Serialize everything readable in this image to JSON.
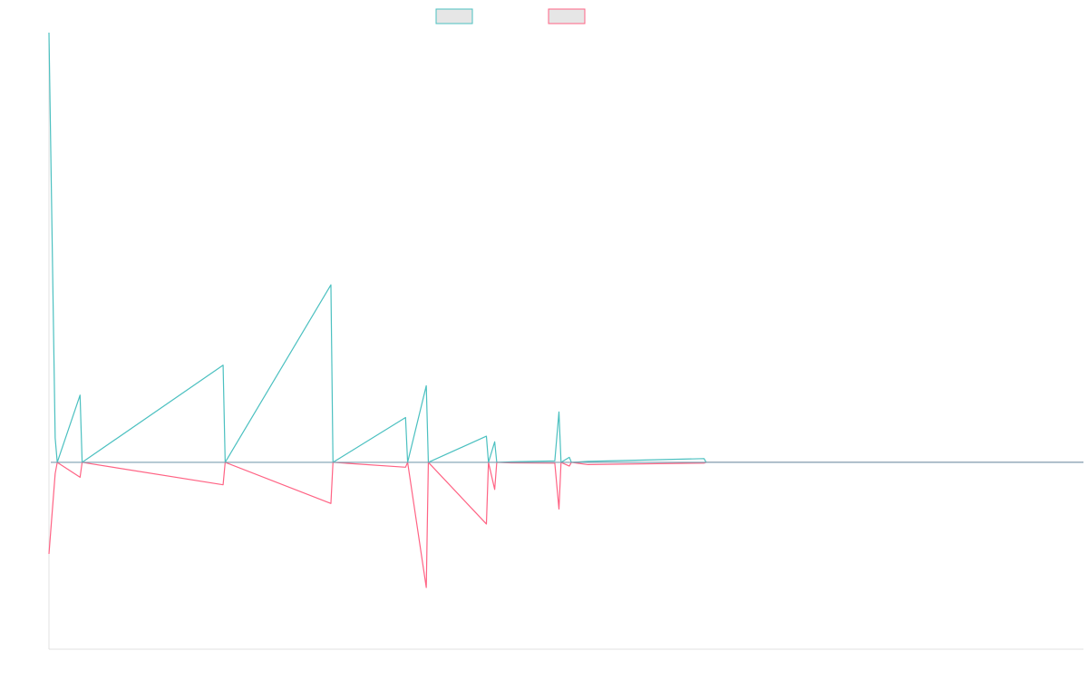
{
  "chart_data": {
    "type": "line",
    "title": "",
    "xlabel": "",
    "ylabel": "",
    "legend": {
      "position": "top-center"
    },
    "grid": false,
    "x_count": 500,
    "ylim": [
      -100,
      230
    ],
    "series": [
      {
        "color": "#4bc0c0",
        "fill": "#e6e6e6",
        "points": [
          [
            0,
            230
          ],
          [
            3,
            13
          ],
          [
            4,
            0
          ],
          [
            15,
            36
          ],
          [
            16,
            0
          ],
          [
            84,
            52
          ],
          [
            85,
            0
          ],
          [
            136,
            95
          ],
          [
            137,
            0
          ],
          [
            172,
            24
          ],
          [
            173,
            0
          ],
          [
            182,
            41
          ],
          [
            183,
            0
          ],
          [
            211,
            14
          ],
          [
            212,
            0
          ],
          [
            215,
            11
          ],
          [
            216,
            0
          ],
          [
            223,
            0.3
          ],
          [
            244,
            0.8
          ],
          [
            246,
            27
          ],
          [
            247,
            0
          ],
          [
            251,
            2.7
          ],
          [
            252,
            0
          ],
          [
            260,
            0.5
          ],
          [
            316,
            2
          ],
          [
            317,
            0
          ]
        ]
      },
      {
        "color": "#ff6384",
        "fill": "#e6e6e6",
        "points": [
          [
            0,
            -49
          ],
          [
            3,
            -6
          ],
          [
            4,
            0
          ],
          [
            15,
            -8
          ],
          [
            16,
            0
          ],
          [
            84,
            -12
          ],
          [
            85,
            0
          ],
          [
            136,
            -22
          ],
          [
            137,
            0
          ],
          [
            172,
            -2.6
          ],
          [
            173,
            0
          ],
          [
            182,
            -67
          ],
          [
            183,
            0
          ],
          [
            211,
            -33
          ],
          [
            212,
            0
          ],
          [
            215,
            -14.5
          ],
          [
            216,
            0
          ],
          [
            223,
            -0.3
          ],
          [
            244,
            -0.4
          ],
          [
            246,
            -25
          ],
          [
            247,
            0
          ],
          [
            251,
            -2
          ],
          [
            252,
            0
          ],
          [
            260,
            -1.2
          ],
          [
            316,
            -0.4
          ],
          [
            317,
            0
          ]
        ]
      }
    ]
  }
}
